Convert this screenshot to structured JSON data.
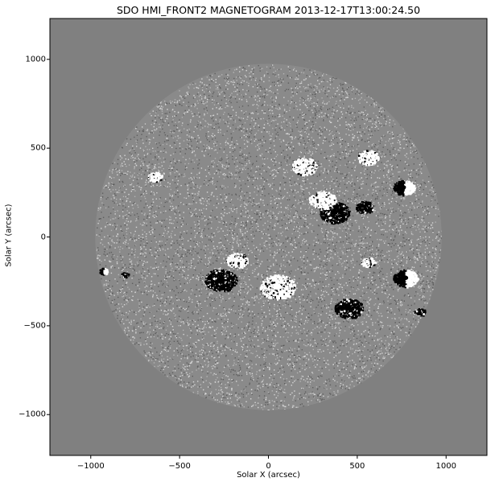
{
  "title": "SDO HMI_FRONT2 MAGNETOGRAM 2013-12-17T13:00:24.50",
  "xlabel": "Solar X (arcsec)",
  "ylabel": "Solar Y (arcsec)",
  "chart_data": {
    "type": "heatmap",
    "title": "SDO HMI_FRONT2 MAGNETOGRAM 2013-12-17T13:00:24.50",
    "xlabel": "Solar X (arcsec)",
    "ylabel": "Solar Y (arcsec)",
    "xlim": [
      -1230,
      1230
    ],
    "ylim": [
      -1230,
      1230
    ],
    "xticks": [
      -1000,
      -500,
      0,
      500,
      1000
    ],
    "xtick_labels": [
      "−1000",
      "−500",
      "0",
      "500",
      "1000"
    ],
    "yticks": [
      1000,
      500,
      0,
      -500,
      -1000
    ],
    "ytick_labels": [
      "1000",
      "500",
      "0",
      "−500",
      "−1000"
    ],
    "solar_radius_arcsec": 975,
    "background_color": "#808080",
    "positive_polarity_color": "#ffffff",
    "negative_polarity_color": "#000000",
    "colormap": "grayscale",
    "active_regions": [
      {
        "x": 370,
        "y": 140,
        "extent_arcsec": 170,
        "polarity": "negative"
      },
      {
        "x": 300,
        "y": 210,
        "extent_arcsec": 150,
        "polarity": "positive"
      },
      {
        "x": 540,
        "y": 170,
        "extent_arcsec": 100,
        "polarity": "negative"
      },
      {
        "x": 760,
        "y": 280,
        "extent_arcsec": 120,
        "polarity": "mixed"
      },
      {
        "x": -640,
        "y": 340,
        "extent_arcsec": 80,
        "polarity": "positive"
      },
      {
        "x": -270,
        "y": -240,
        "extent_arcsec": 180,
        "polarity": "negative"
      },
      {
        "x": -180,
        "y": -130,
        "extent_arcsec": 120,
        "polarity": "positive"
      },
      {
        "x": -930,
        "y": -190,
        "extent_arcsec": 50,
        "polarity": "mixed"
      },
      {
        "x": -810,
        "y": -210,
        "extent_arcsec": 40,
        "polarity": "negative"
      },
      {
        "x": 560,
        "y": -140,
        "extent_arcsec": 80,
        "polarity": "positive"
      },
      {
        "x": 770,
        "y": -230,
        "extent_arcsec": 140,
        "polarity": "mixed"
      },
      {
        "x": 850,
        "y": -420,
        "extent_arcsec": 60,
        "polarity": "negative"
      },
      {
        "x": 450,
        "y": -400,
        "extent_arcsec": 160,
        "polarity": "negative"
      },
      {
        "x": 50,
        "y": -280,
        "extent_arcsec": 200,
        "polarity": "positive"
      },
      {
        "x": 200,
        "y": 400,
        "extent_arcsec": 140,
        "polarity": "positive"
      },
      {
        "x": 560,
        "y": 450,
        "extent_arcsec": 120,
        "polarity": "positive"
      }
    ]
  }
}
